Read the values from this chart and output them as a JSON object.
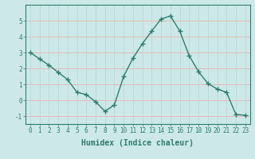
{
  "x": [
    0,
    1,
    2,
    3,
    4,
    5,
    6,
    7,
    8,
    9,
    10,
    11,
    12,
    13,
    14,
    15,
    16,
    17,
    18,
    19,
    20,
    21,
    22,
    23
  ],
  "y": [
    3.0,
    2.6,
    2.2,
    1.75,
    1.3,
    0.5,
    0.35,
    -0.1,
    -0.7,
    -0.3,
    1.5,
    2.65,
    3.55,
    4.35,
    5.1,
    5.3,
    4.35,
    2.8,
    1.8,
    1.05,
    0.7,
    0.5,
    -0.9,
    -0.95
  ],
  "line_color": "#2e7d6e",
  "marker": "+",
  "markersize": 5,
  "linewidth": 1.0,
  "background_color": "#cde8e8",
  "grid_color_h": "#e8b0b0",
  "grid_color_v": "#b8d8d8",
  "xlabel": "Humidex (Indice chaleur)",
  "xlim": [
    -0.5,
    23.5
  ],
  "ylim": [
    -1.5,
    6.0
  ],
  "yticks": [
    -1,
    0,
    1,
    2,
    3,
    4,
    5
  ],
  "xticks": [
    0,
    1,
    2,
    3,
    4,
    5,
    6,
    7,
    8,
    9,
    10,
    11,
    12,
    13,
    14,
    15,
    16,
    17,
    18,
    19,
    20,
    21,
    22,
    23
  ],
  "tick_color": "#2e7d6e",
  "tick_fontsize": 5.5,
  "xlabel_fontsize": 7,
  "label_color": "#2e7d6e"
}
